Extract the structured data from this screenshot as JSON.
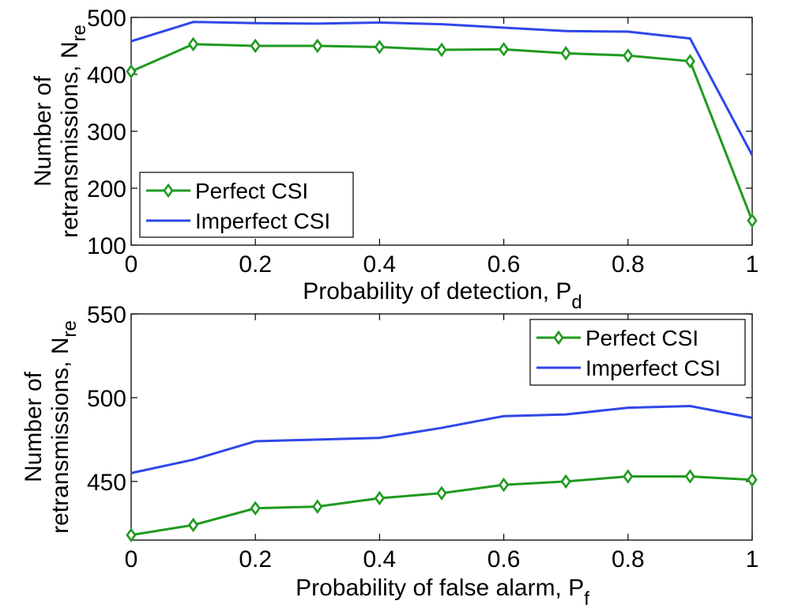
{
  "chart_data": [
    {
      "type": "line",
      "xlabel": "Probability of detection, P",
      "xlabel_sub": "d",
      "ylabel_line1": "Number of",
      "ylabel_line2": "retransmissions, N",
      "ylabel_sub": "re",
      "xlim": [
        0,
        1
      ],
      "ylim": [
        100,
        500
      ],
      "xticks": [
        0,
        0.2,
        0.4,
        0.6,
        0.8,
        1
      ],
      "xtick_labels": [
        "0",
        "0.2",
        "0.4",
        "0.6",
        "0.8",
        "1"
      ],
      "yticks": [
        100,
        200,
        300,
        400,
        500
      ],
      "ytick_labels": [
        "100",
        "200",
        "300",
        "400",
        "500"
      ],
      "legend_position": "bottom-left",
      "x": [
        0,
        0.1,
        0.2,
        0.3,
        0.4,
        0.5,
        0.6,
        0.7,
        0.8,
        0.9,
        1
      ],
      "series": [
        {
          "name": "Perfect CSI",
          "color": "#1f9a1f",
          "marker": "diamond",
          "values": [
            405,
            453,
            450,
            450,
            448,
            443,
            444,
            437,
            433,
            423,
            143
          ]
        },
        {
          "name": "Imperfect CSI",
          "color": "#2f47e8",
          "marker": "none",
          "values": [
            458,
            492,
            490,
            489,
            491,
            488,
            482,
            476,
            475,
            463,
            258
          ]
        }
      ]
    },
    {
      "type": "line",
      "xlabel": "Probability of false alarm, P",
      "xlabel_sub": "f",
      "ylabel_line1": "Number of",
      "ylabel_line2": "retransmissions, N",
      "ylabel_sub": "re",
      "xlim": [
        0,
        1
      ],
      "ylim": [
        415,
        550
      ],
      "xticks": [
        0,
        0.2,
        0.4,
        0.6,
        0.8,
        1
      ],
      "xtick_labels": [
        "0",
        "0.2",
        "0.4",
        "0.6",
        "0.8",
        "1"
      ],
      "yticks": [
        450,
        500,
        550
      ],
      "ytick_labels": [
        "450",
        "500",
        "550"
      ],
      "legend_position": "top-right",
      "x": [
        0,
        0.1,
        0.2,
        0.3,
        0.4,
        0.5,
        0.6,
        0.7,
        0.8,
        0.9,
        1
      ],
      "series": [
        {
          "name": "Perfect CSI",
          "color": "#1f9a1f",
          "marker": "diamond",
          "values": [
            418,
            424,
            434,
            435,
            440,
            443,
            448,
            450,
            453,
            453,
            451
          ]
        },
        {
          "name": "Imperfect CSI",
          "color": "#2f47e8",
          "marker": "none",
          "values": [
            455,
            463,
            474,
            475,
            476,
            482,
            489,
            490,
            494,
            495,
            488
          ]
        }
      ]
    }
  ]
}
